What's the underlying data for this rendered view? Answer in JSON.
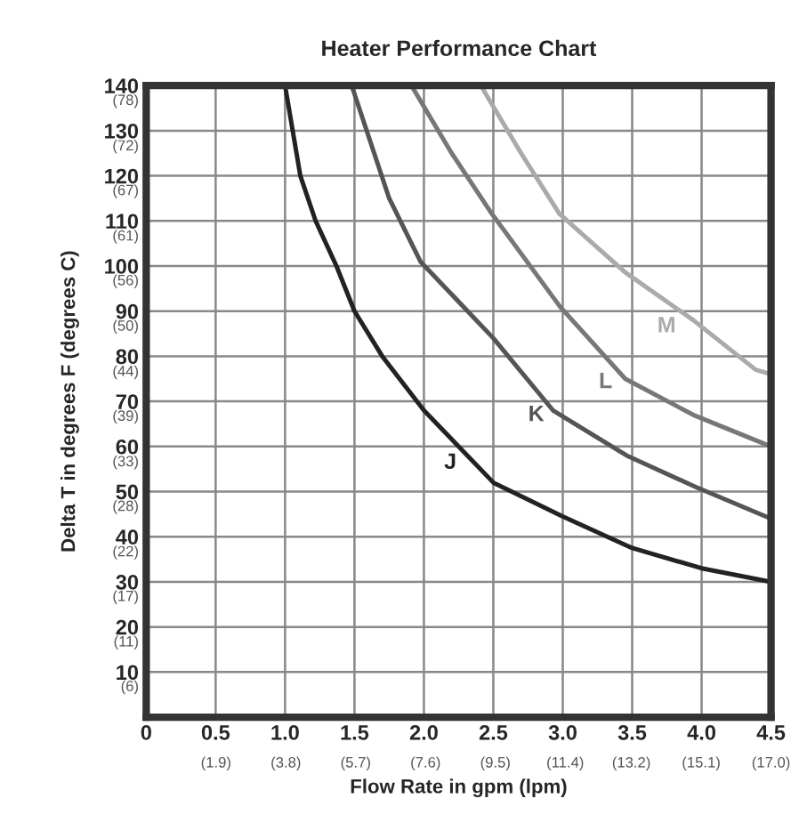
{
  "chart_data": {
    "type": "line",
    "title": "Heater Performance Chart",
    "xlabel": "Flow Rate in gpm (lpm)",
    "ylabel": "Delta T in degrees F (degrees C)",
    "xlim": [
      0,
      4.5
    ],
    "ylim": [
      0,
      140
    ],
    "xticks": [
      0,
      0.5,
      {
        "value": 1.0,
        "label": "1.0"
      },
      1.5,
      {
        "value": 2.0,
        "label": "2.0"
      },
      2.5,
      {
        "value": 3.0,
        "label": "3.0"
      },
      3.5,
      {
        "value": 4.0,
        "label": "4.0"
      },
      4.5
    ],
    "yticks": [
      10,
      20,
      30,
      40,
      50,
      60,
      70,
      80,
      90,
      100,
      110,
      120,
      130,
      140
    ],
    "x2lim": [
      0,
      17.0
    ],
    "x2ticks": [
      {
        "value": 1.9,
        "label": "(1.9)"
      },
      {
        "value": 3.8,
        "label": "(3.8)"
      },
      {
        "value": 5.7,
        "label": "(5.7)"
      },
      {
        "value": 7.6,
        "label": "(7.6)"
      },
      {
        "value": 9.5,
        "label": "(9.5)"
      },
      {
        "value": 11.4,
        "label": "(11.4)"
      },
      {
        "value": 13.2,
        "label": "(13.2)"
      },
      {
        "value": 15.1,
        "label": "(15.1)"
      },
      {
        "value": 17.0,
        "label": "(17.0)"
      }
    ],
    "y2lim": [
      0,
      77.8
    ],
    "y2ticks": [
      {
        "value": 5.6,
        "label": "(6)"
      },
      {
        "value": 11.1,
        "label": "(11)"
      },
      {
        "value": 16.7,
        "label": "(17)"
      },
      {
        "value": 22.2,
        "label": "(22)"
      },
      {
        "value": 27.8,
        "label": "(28)"
      },
      {
        "value": 33.3,
        "label": "(33)"
      },
      {
        "value": 38.9,
        "label": "(39)"
      },
      {
        "value": 44.4,
        "label": "(44)"
      },
      {
        "value": 50,
        "label": "(50)"
      },
      {
        "value": 55.6,
        "label": "(56)"
      },
      {
        "value": 61.1,
        "label": "(61)"
      },
      {
        "value": 66.7,
        "label": "(67)"
      },
      {
        "value": 72.2,
        "label": "(72)"
      },
      {
        "value": 77.8,
        "label": "(78)"
      }
    ],
    "grid": true,
    "marker": "none",
    "line_style": "solid",
    "legend": false,
    "series": [
      {
        "name": "J",
        "color": "#222222",
        "x": [
          1.0,
          1.11,
          1.22,
          1.37,
          1.5,
          1.7,
          2.0,
          2.5,
          3.0,
          3.5,
          4.0,
          4.5
        ],
        "values": [
          140,
          120,
          110,
          100,
          90,
          80,
          68,
          52,
          44.5,
          37.5,
          33,
          30
        ]
      },
      {
        "name": "K",
        "color": "#555555",
        "x": [
          1.48,
          1.75,
          1.975,
          2.5,
          2.93,
          3.46,
          3.96,
          4.5
        ],
        "values": [
          140,
          115,
          101,
          84,
          68,
          58,
          51,
          44
        ]
      },
      {
        "name": "L",
        "color": "#777777",
        "x": [
          1.91,
          2.2,
          2.48,
          2.98,
          3.45,
          3.94,
          4.5
        ],
        "values": [
          140,
          125,
          112,
          91,
          75,
          67,
          60
        ]
      },
      {
        "name": "M",
        "color": "#aaaaaa",
        "x": [
          2.41,
          2.7,
          2.975,
          3.45,
          3.94,
          4.39,
          4.5
        ],
        "values": [
          140,
          125,
          111.6,
          98.6,
          88,
          77,
          76
        ]
      }
    ]
  }
}
